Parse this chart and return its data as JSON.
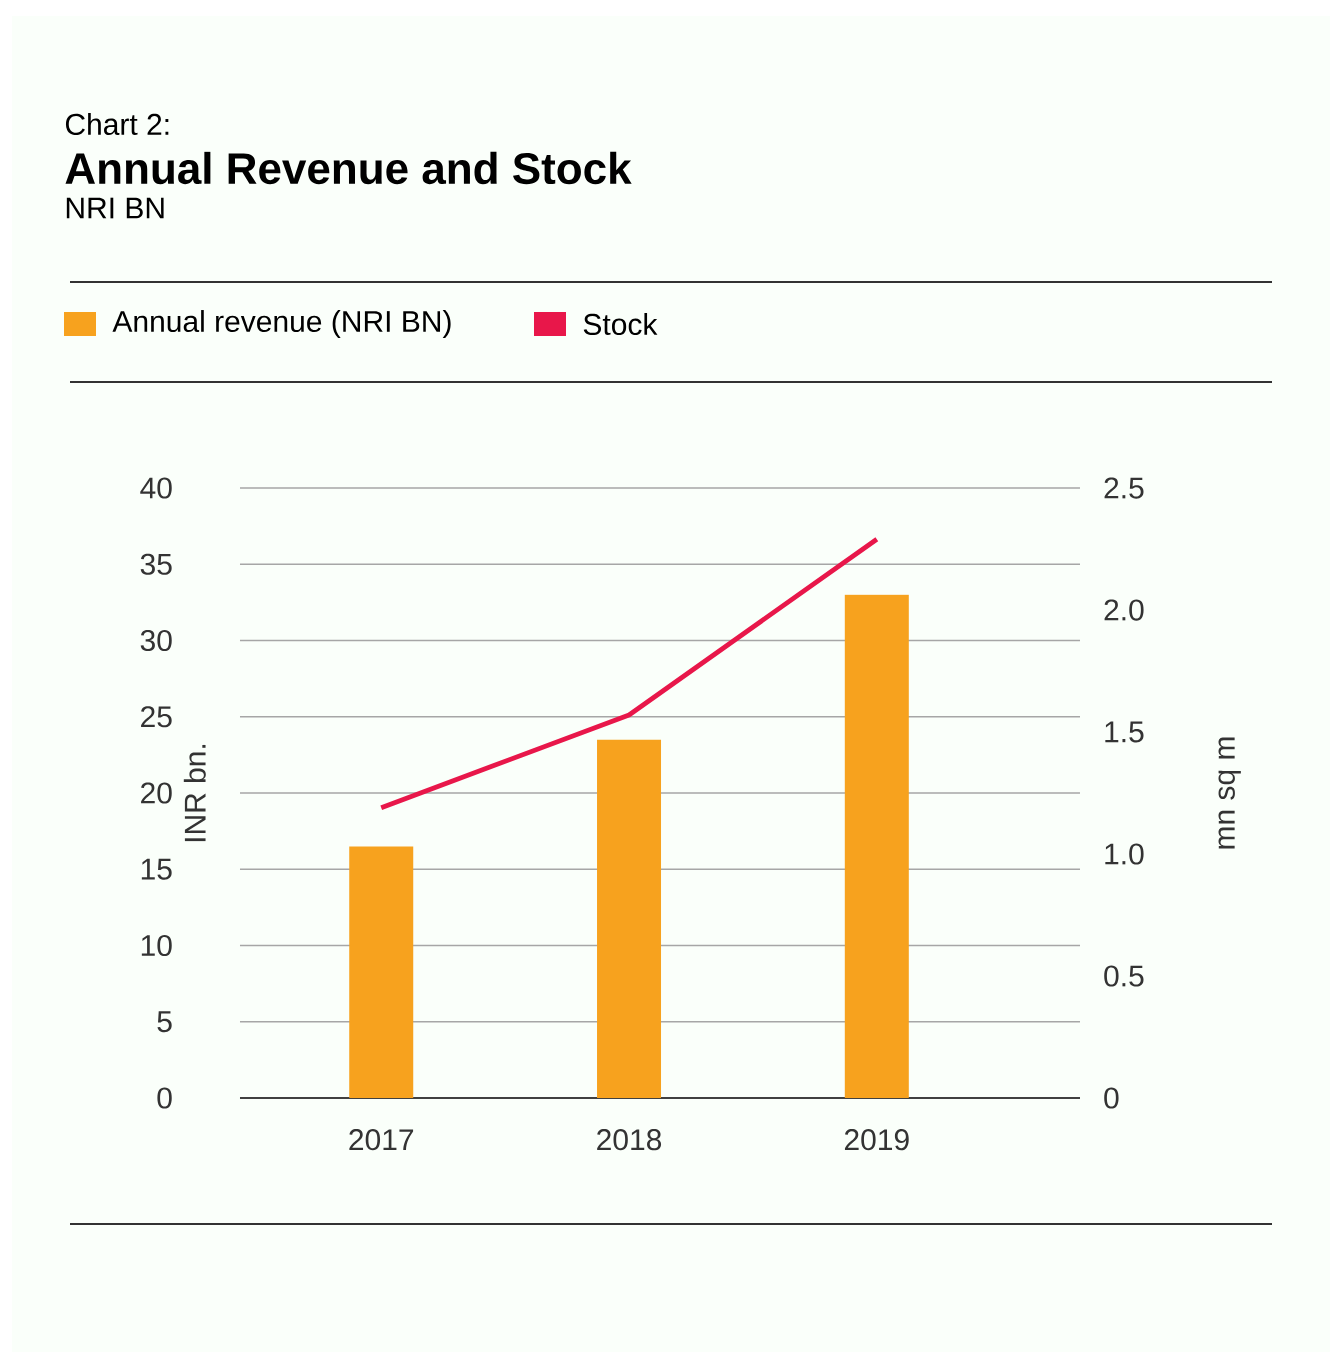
{
  "chart_data": {
    "type": "bar",
    "title": "Annual Revenue and Stock",
    "subtitle": "NRI BN",
    "annotations": [
      "Chart 2:"
    ],
    "categories": [
      "2017",
      "2018",
      "2019"
    ],
    "series": [
      {
        "name": "Annual revenue (NRI BN)",
        "color": "#f7a21e",
        "values": [
          16.5,
          23.5,
          33
        ]
      },
      {
        "name": "Stock",
        "type": "line",
        "axis": "y2",
        "color": "#e8174a",
        "values": [
          1.19,
          1.57,
          2.29
        ]
      }
    ],
    "ylabel": "INR bn.",
    "y2label": "mn sq m",
    "ylim": [
      0,
      40
    ],
    "yticks": [
      0,
      5,
      10,
      15,
      20,
      25,
      30,
      35,
      40
    ],
    "y2lim": [
      0,
      2.5
    ],
    "y2ticks": [
      0,
      0.5,
      {
        "value": 1,
        "label": "1.0"
      },
      1.5,
      {
        "value": 2,
        "label": "2.0"
      },
      2.5
    ],
    "grid": "y",
    "legend": "top"
  }
}
